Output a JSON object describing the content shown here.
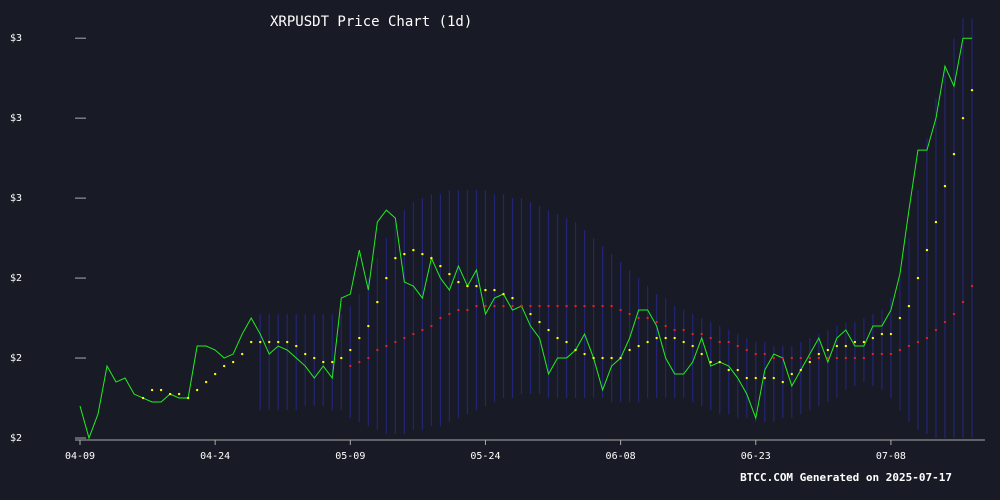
{
  "chart_data": {
    "type": "line",
    "title": "XRPUSDT Price Chart (1d)",
    "annotation": "BTCC.COM Generated on 2025-07-17",
    "categories": [
      "04-09",
      null,
      null,
      null,
      null,
      null,
      null,
      null,
      null,
      null,
      null,
      null,
      null,
      null,
      null,
      "04-24",
      null,
      null,
      null,
      null,
      null,
      null,
      null,
      null,
      null,
      null,
      null,
      null,
      null,
      null,
      "05-09",
      null,
      null,
      null,
      null,
      null,
      null,
      null,
      null,
      null,
      null,
      null,
      null,
      null,
      null,
      "05-24",
      null,
      null,
      null,
      null,
      null,
      null,
      null,
      null,
      null,
      null,
      null,
      null,
      null,
      null,
      "06-08",
      null,
      null,
      null,
      null,
      null,
      null,
      null,
      null,
      null,
      null,
      null,
      null,
      null,
      null,
      "06-23",
      null,
      null,
      null,
      null,
      null,
      null,
      null,
      null,
      null,
      null,
      null,
      null,
      null,
      null,
      "07-08",
      null,
      null,
      null,
      null,
      null,
      null,
      null,
      null,
      null
    ],
    "ylim": [
      1.995,
      3.058
    ],
    "yticks": [
      {
        "value": 2.0,
        "label": "$2"
      },
      {
        "value": 2.2,
        "label": "$2"
      },
      {
        "value": 2.4,
        "label": "$2"
      },
      {
        "value": 2.6,
        "label": "$3"
      },
      {
        "value": 2.8,
        "label": "$3"
      },
      {
        "value": 3.0,
        "label": "$3"
      }
    ],
    "band": {
      "color": "#2b2bb8",
      "upper": [
        null,
        null,
        null,
        null,
        null,
        null,
        null,
        null,
        null,
        null,
        null,
        null,
        null,
        null,
        null,
        null,
        null,
        null,
        null,
        null,
        2.31,
        2.31,
        2.31,
        2.31,
        2.31,
        2.31,
        2.31,
        2.31,
        2.31,
        2.31,
        2.33,
        2.36,
        2.4,
        2.45,
        2.5,
        2.54,
        2.57,
        2.59,
        2.6,
        2.61,
        2.61,
        2.62,
        2.62,
        2.62,
        2.62,
        2.62,
        2.61,
        2.61,
        2.6,
        2.6,
        2.59,
        2.58,
        2.57,
        2.56,
        2.55,
        2.54,
        2.52,
        2.5,
        2.48,
        2.46,
        2.44,
        2.42,
        2.4,
        2.38,
        2.36,
        2.35,
        2.33,
        2.32,
        2.31,
        2.3,
        2.29,
        2.28,
        2.27,
        2.26,
        2.25,
        2.24,
        2.24,
        2.23,
        2.23,
        2.23,
        2.24,
        2.25,
        2.26,
        2.27,
        2.28,
        2.29,
        2.29,
        2.3,
        2.31,
        2.32,
        2.35,
        2.4,
        2.5,
        2.62,
        2.75,
        2.85,
        2.93,
        3.0,
        3.05,
        3.05
      ],
      "lower": [
        null,
        null,
        null,
        null,
        null,
        null,
        null,
        null,
        null,
        null,
        null,
        null,
        null,
        null,
        null,
        null,
        null,
        null,
        null,
        null,
        2.07,
        2.07,
        2.07,
        2.07,
        2.07,
        2.08,
        2.08,
        2.08,
        2.07,
        2.07,
        2.05,
        2.04,
        2.03,
        2.02,
        2.01,
        2.01,
        2.01,
        2.02,
        2.02,
        2.03,
        2.03,
        2.04,
        2.05,
        2.06,
        2.07,
        2.08,
        2.09,
        2.1,
        2.1,
        2.11,
        2.11,
        2.11,
        2.1,
        2.1,
        2.1,
        2.1,
        2.1,
        2.1,
        2.1,
        2.09,
        2.09,
        2.09,
        2.09,
        2.1,
        2.1,
        2.1,
        2.1,
        2.1,
        2.09,
        2.08,
        2.07,
        2.06,
        2.06,
        2.05,
        2.05,
        2.04,
        2.04,
        2.04,
        2.05,
        2.05,
        2.06,
        2.07,
        2.08,
        2.09,
        2.1,
        2.12,
        2.13,
        2.14,
        2.13,
        2.12,
        2.1,
        2.07,
        2.04,
        2.02,
        2.01,
        2.0,
        2.0,
        2.0,
        2.0,
        2.0
      ]
    },
    "series": [
      {
        "style": "line",
        "color": "#22ee22",
        "values": [
          2.08,
          2.0,
          2.06,
          2.18,
          2.14,
          2.15,
          2.11,
          2.1,
          2.09,
          2.09,
          2.11,
          2.1,
          2.1,
          2.23,
          2.23,
          2.22,
          2.2,
          2.21,
          2.26,
          2.3,
          2.26,
          2.21,
          2.23,
          2.22,
          2.2,
          2.18,
          2.15,
          2.18,
          2.15,
          2.35,
          2.36,
          2.47,
          2.37,
          2.54,
          2.57,
          2.55,
          2.39,
          2.38,
          2.35,
          2.45,
          2.4,
          2.37,
          2.43,
          2.38,
          2.42,
          2.31,
          2.35,
          2.36,
          2.32,
          2.33,
          2.28,
          2.25,
          2.16,
          2.2,
          2.2,
          2.22,
          2.26,
          2.2,
          2.12,
          2.18,
          2.2,
          2.25,
          2.32,
          2.32,
          2.28,
          2.2,
          2.16,
          2.16,
          2.19,
          2.25,
          2.18,
          2.19,
          2.18,
          2.15,
          2.11,
          2.05,
          2.17,
          2.21,
          2.2,
          2.13,
          2.17,
          2.21,
          2.25,
          2.19,
          2.25,
          2.27,
          2.23,
          2.23,
          2.28,
          2.28,
          2.32,
          2.41,
          2.57,
          2.72,
          2.72,
          2.8,
          2.93,
          2.88,
          3.0,
          3.0
        ]
      },
      {
        "style": "dots",
        "color": "#ffff00",
        "values": [
          null,
          null,
          null,
          null,
          null,
          null,
          null,
          2.1,
          2.12,
          2.12,
          2.11,
          2.11,
          2.1,
          2.12,
          2.14,
          2.16,
          2.18,
          2.19,
          2.21,
          2.24,
          2.24,
          2.24,
          2.24,
          2.24,
          2.23,
          2.21,
          2.2,
          2.19,
          2.19,
          2.2,
          2.22,
          2.25,
          2.28,
          2.34,
          2.4,
          2.45,
          2.46,
          2.47,
          2.46,
          2.45,
          2.43,
          2.41,
          2.39,
          2.38,
          2.38,
          2.37,
          2.37,
          2.36,
          2.35,
          2.33,
          2.31,
          2.29,
          2.27,
          2.25,
          2.24,
          2.22,
          2.21,
          2.2,
          2.2,
          2.2,
          2.2,
          2.22,
          2.23,
          2.24,
          2.25,
          2.25,
          2.25,
          2.24,
          2.23,
          2.21,
          2.19,
          2.19,
          2.17,
          2.17,
          2.15,
          2.15,
          2.15,
          2.15,
          2.14,
          2.16,
          2.17,
          2.19,
          2.21,
          2.22,
          2.23,
          2.23,
          2.24,
          2.24,
          2.25,
          2.26,
          2.26,
          2.3,
          2.33,
          2.4,
          2.47,
          2.54,
          2.63,
          2.71,
          2.8,
          2.87
        ]
      },
      {
        "style": "dots",
        "color": "#dd2222",
        "values": [
          null,
          null,
          null,
          null,
          null,
          null,
          null,
          null,
          null,
          null,
          null,
          null,
          null,
          null,
          null,
          null,
          null,
          null,
          null,
          null,
          null,
          null,
          null,
          null,
          null,
          null,
          null,
          null,
          null,
          null,
          2.18,
          2.19,
          2.2,
          2.22,
          2.23,
          2.24,
          2.25,
          2.26,
          2.27,
          2.28,
          2.3,
          2.31,
          2.32,
          2.32,
          2.33,
          2.33,
          2.33,
          2.33,
          2.33,
          2.33,
          2.33,
          2.33,
          2.33,
          2.33,
          2.33,
          2.33,
          2.33,
          2.33,
          2.33,
          2.33,
          2.32,
          2.31,
          2.3,
          2.3,
          2.29,
          2.28,
          2.27,
          2.27,
          2.26,
          2.26,
          2.25,
          2.24,
          2.24,
          2.23,
          2.22,
          2.21,
          2.21,
          2.2,
          2.2,
          2.2,
          2.2,
          2.2,
          2.2,
          2.2,
          2.2,
          2.2,
          2.2,
          2.2,
          2.21,
          2.21,
          2.21,
          2.22,
          2.23,
          2.24,
          2.25,
          2.27,
          2.29,
          2.31,
          2.34,
          2.38
        ]
      }
    ]
  }
}
